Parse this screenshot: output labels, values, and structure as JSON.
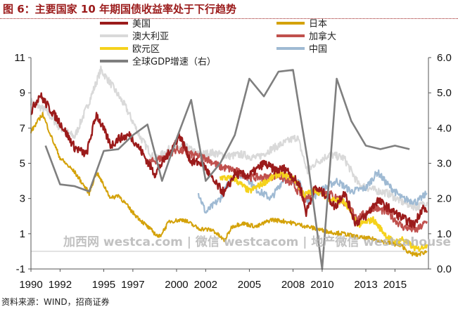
{
  "title": "图 6：主要国家 10 年期国债收益率处于下行趋势",
  "source": "资料来源：WIND，招商证券",
  "watermark": "加西网 westca.com | 微信 westcacom | 地产微信 westcahouse",
  "colors": {
    "us": "#9b1b1b",
    "japan": "#d4a20a",
    "australia": "#d9d9d9",
    "canada": "#c0504d",
    "euro": "#f5d21c",
    "china": "#9fbad3",
    "gdp": "#7f7f7f"
  },
  "chart_data": {
    "type": "line",
    "x_ticks": [
      "1990",
      "1992",
      "1995",
      "1997",
      "2000",
      "2002",
      "2005",
      "2008",
      "2010",
      "2013",
      "2015"
    ],
    "x_range": [
      1990,
      2017.3
    ],
    "y_left_ticks": [
      "11",
      "9",
      "7",
      "5",
      "3",
      "1",
      "-1"
    ],
    "y_left_range": [
      -1,
      11
    ],
    "y_right_ticks": [
      "6.0",
      "5.0",
      "4.0",
      "3.0",
      "2.0",
      "1.0",
      "0.0"
    ],
    "y_right_range": [
      0,
      6
    ],
    "legend": [
      {
        "key": "us",
        "label": "美国"
      },
      {
        "key": "japan",
        "label": "日本"
      },
      {
        "key": "australia",
        "label": "澳大利亚"
      },
      {
        "key": "canada",
        "label": "加拿大"
      },
      {
        "key": "euro",
        "label": "欧元区"
      },
      {
        "key": "china",
        "label": "中国"
      },
      {
        "key": "gdp",
        "label": "全球GDP增速（右）"
      }
    ],
    "series": [
      {
        "key": "australia",
        "axis": "left",
        "x": [
          1990,
          1991,
          1992,
          1993,
          1994,
          1994.8,
          1995.5,
          1996.5,
          1997.5,
          1998.5,
          1999.5,
          2000.5,
          2001.5,
          2002.5,
          2003.5,
          2004.5,
          2005.5,
          2006.5,
          2007.5,
          2008.3,
          2009,
          2009.5,
          2010.5,
          2011.5,
          2012.5,
          2013.5,
          2014.5,
          2015.5,
          2016.5,
          2017.2
        ],
        "y": [
          8.5,
          8.0,
          7.0,
          6.5,
          8.5,
          10.3,
          9.5,
          8.2,
          6.5,
          5.2,
          5.8,
          6.0,
          5.5,
          5.6,
          5.4,
          5.5,
          5.3,
          5.8,
          6.2,
          6.5,
          4.5,
          5.0,
          5.5,
          5.3,
          3.8,
          3.5,
          3.3,
          2.8,
          2.5,
          2.8
        ]
      },
      {
        "key": "china",
        "axis": "left",
        "x": [
          2001.5,
          2002,
          2003,
          2004,
          2004.8,
          2005.5,
          2006.5,
          2007.5,
          2008.5,
          2009,
          2010,
          2011,
          2012,
          2013,
          2013.8,
          2014.5,
          2015.5,
          2016,
          2016.5,
          2017.2
        ],
        "y": [
          3.3,
          2.2,
          3.0,
          4.5,
          4.2,
          3.5,
          3.0,
          4.3,
          3.8,
          2.8,
          3.5,
          4.0,
          3.4,
          3.6,
          4.5,
          3.8,
          3.0,
          2.9,
          2.8,
          3.3
        ]
      },
      {
        "key": "canada",
        "axis": "left",
        "x": [
          1998,
          1999,
          2000,
          2001,
          2002,
          2003,
          2004,
          2005,
          2006,
          2007,
          2008,
          2008.8,
          2009.5,
          2010.5,
          2011.5,
          2012.5,
          2013.5,
          2014.5,
          2015.5,
          2016.5,
          2017.2
        ],
        "y": [
          5.0,
          5.3,
          5.8,
          5.5,
          5.3,
          4.8,
          4.6,
          4.2,
          4.2,
          4.3,
          3.8,
          2.9,
          3.5,
          3.3,
          2.8,
          1.9,
          2.5,
          2.2,
          1.4,
          1.2,
          1.7
        ]
      },
      {
        "key": "euro",
        "axis": "left",
        "x": [
          2003,
          2004,
          2005,
          2006,
          2007,
          2008,
          2008.8,
          2009.5,
          2010.5,
          2011.5,
          2012.5,
          2013.5,
          2014.5,
          2015,
          2015.5,
          2016.5,
          2017.2
        ],
        "y": [
          4.2,
          4.1,
          3.4,
          3.9,
          4.4,
          4.2,
          3.2,
          3.5,
          3.0,
          2.8,
          1.5,
          1.8,
          0.8,
          0.5,
          0.7,
          0.1,
          0.4
        ]
      },
      {
        "key": "us",
        "axis": "left",
        "x": [
          1990,
          1990.6,
          1991.2,
          1992,
          1993,
          1993.8,
          1994.5,
          1995.5,
          1996,
          1996.8,
          1997.5,
          1998.5,
          1999.5,
          2000.2,
          2001,
          2001.8,
          2002.5,
          2003.3,
          2004,
          2005,
          2006,
          2006.8,
          2007.5,
          2008.5,
          2008.9,
          2009.5,
          2010.3,
          2010.9,
          2011.5,
          2012.3,
          2013,
          2013.8,
          2014.5,
          2015.3,
          2016.3,
          2016.9,
          2017.2
        ],
        "y": [
          7.9,
          8.9,
          8.2,
          7.3,
          5.9,
          5.5,
          7.8,
          6.0,
          6.4,
          6.6,
          5.8,
          4.4,
          5.6,
          6.6,
          5.1,
          5.0,
          4.0,
          3.3,
          4.4,
          4.3,
          5.0,
          4.6,
          4.7,
          3.7,
          2.2,
          3.6,
          3.2,
          2.5,
          3.4,
          1.6,
          2.0,
          2.9,
          2.5,
          2.0,
          1.5,
          2.5,
          2.2
        ]
      },
      {
        "key": "japan",
        "axis": "left",
        "x": [
          1990,
          1990.8,
          1991.5,
          1992,
          1993,
          1994,
          1994.5,
          1995.5,
          1996,
          1997,
          1998,
          1998.8,
          1999.5,
          2000.5,
          2001.5,
          2002.5,
          2003.3,
          2003.8,
          2004.5,
          2005.5,
          2006.5,
          2007.5,
          2008.5,
          2009.5,
          2010.5,
          2011.5,
          2012.5,
          2013.5,
          2014.5,
          2015.5,
          2016,
          2016.5,
          2017.2
        ],
        "y": [
          6.8,
          7.8,
          6.3,
          5.3,
          4.5,
          3.3,
          4.5,
          3.0,
          3.2,
          2.2,
          1.4,
          0.8,
          1.7,
          1.8,
          1.3,
          1.2,
          0.6,
          1.4,
          1.6,
          1.4,
          1.8,
          1.7,
          1.5,
          1.3,
          1.1,
          1.0,
          0.8,
          0.7,
          0.5,
          0.3,
          -0.1,
          -0.2,
          0.0
        ]
      },
      {
        "key": "gdp",
        "axis": "right",
        "x": [
          1991,
          1992,
          1993,
          1994,
          1995,
          1996,
          1997,
          1998,
          1999,
          2000,
          2001,
          2002,
          2003,
          2004,
          2005,
          2006,
          2007,
          2008,
          2009,
          2010,
          2011,
          2012,
          2013,
          2014,
          2015,
          2016
        ],
        "y": [
          3.5,
          2.4,
          2.35,
          2.2,
          3.35,
          3.4,
          3.8,
          4.1,
          2.5,
          3.7,
          4.8,
          2.5,
          3.0,
          3.8,
          5.4,
          4.9,
          5.6,
          5.65,
          3.1,
          0.0,
          5.4,
          4.2,
          3.5,
          3.4,
          3.5,
          3.4
        ]
      }
    ]
  }
}
